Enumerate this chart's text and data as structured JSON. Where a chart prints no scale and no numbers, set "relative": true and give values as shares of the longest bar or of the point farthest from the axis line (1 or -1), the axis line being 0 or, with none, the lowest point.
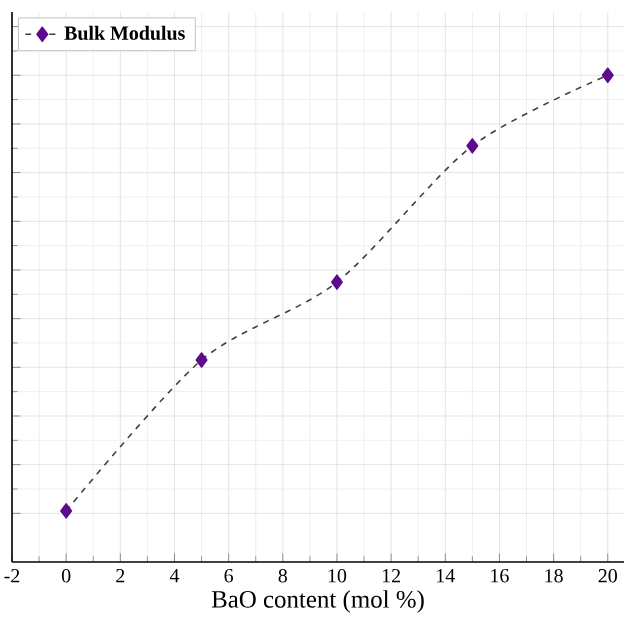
{
  "chart_data": {
    "type": "line",
    "xlabel": "BaO content (mol %)",
    "relative": true,
    "x": [
      0,
      5,
      10,
      15,
      20
    ],
    "series": [
      {
        "name": "Bulk Modulus",
        "color": "#5e0a8c",
        "values": [
          0.105,
          0.415,
          0.575,
          0.855,
          1.0
        ]
      }
    ],
    "xlim": [
      -2,
      20.6
    ],
    "xticks": [
      -2,
      0,
      2,
      4,
      6,
      8,
      10,
      12,
      14,
      16,
      18,
      20
    ],
    "grid": true,
    "legend": "top left",
    "marker": "diamond",
    "line_style": "dashed"
  }
}
